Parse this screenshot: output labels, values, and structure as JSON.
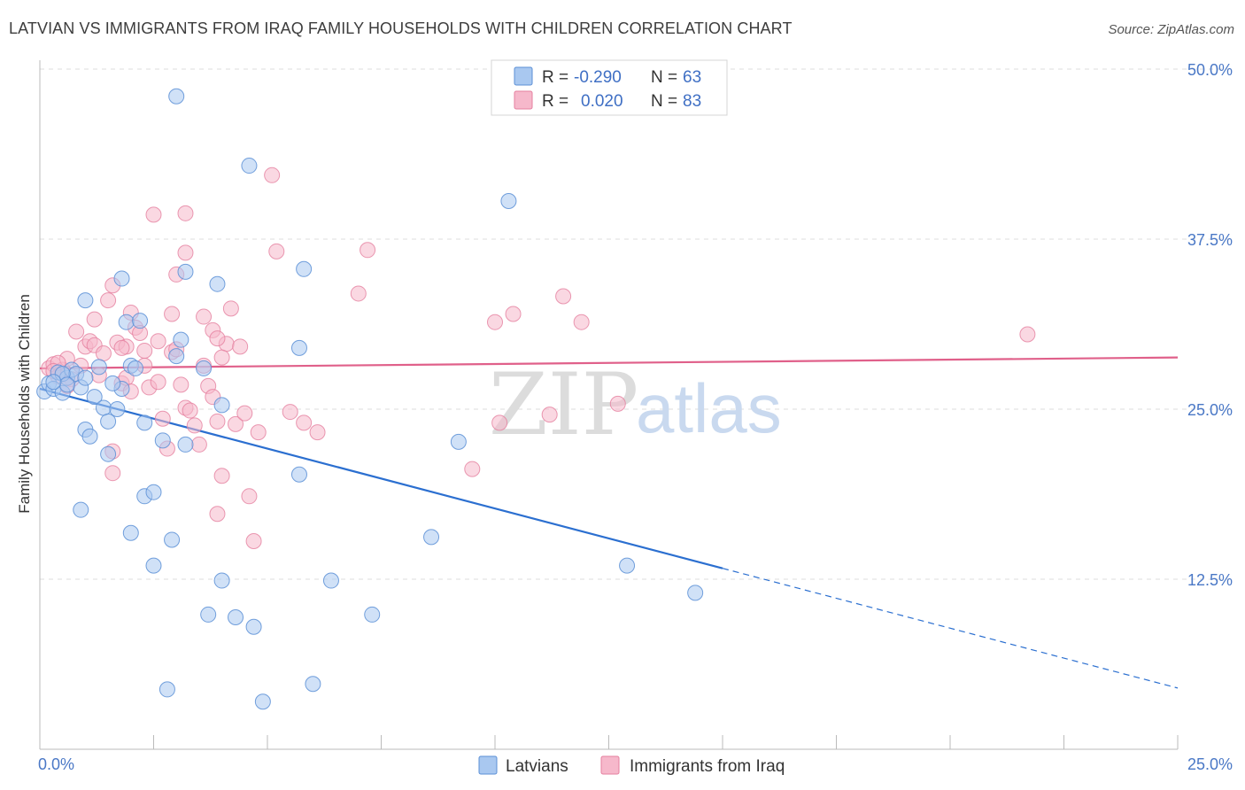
{
  "title": "LATVIAN VS IMMIGRANTS FROM IRAQ FAMILY HOUSEHOLDS WITH CHILDREN CORRELATION CHART",
  "source": "Source: ZipAtlas.com",
  "watermark": {
    "part1": "ZIP",
    "part2": "atlas"
  },
  "colors": {
    "latvians_fill": "#a9c8f0",
    "latvians_stroke": "#5b8fd6",
    "latvians_line": "#2b6fd0",
    "iraq_fill": "#f6b8cb",
    "iraq_stroke": "#e57f9f",
    "iraq_line": "#e0608a",
    "tick_label": "#4a78c6",
    "grid": "#dddddd"
  },
  "legend": {
    "rows": [
      {
        "r_label": "R =",
        "r_value": "-0.290",
        "n_label": "N =",
        "n_value": "63"
      },
      {
        "r_label": "R =",
        "r_value": "0.020",
        "n_label": "N =",
        "n_value": "83"
      }
    ]
  },
  "chart_data": {
    "type": "scatter",
    "xlabel": "",
    "ylabel": "Family Households with Children",
    "xlim": [
      0,
      25
    ],
    "ylim": [
      0,
      50
    ],
    "x_tick_labels": [
      "0.0%",
      "25.0%"
    ],
    "y_tick_labels": [
      "50.0%",
      "37.5%",
      "25.0%",
      "12.5%"
    ],
    "y_ticks": [
      50,
      37.5,
      25,
      12.5
    ],
    "grid": true,
    "legend_position": "top-center",
    "series": [
      {
        "name": "Latvians",
        "stats": {
          "R": -0.29,
          "N": 63
        },
        "trend": {
          "x": [
            0,
            15
          ],
          "y": [
            26.5,
            13.3
          ],
          "extend_to": [
            25,
            4.5
          ]
        },
        "points": [
          [
            0.1,
            26.3
          ],
          [
            0.2,
            26.9
          ],
          [
            0.3,
            26.5
          ],
          [
            0.4,
            27.7
          ],
          [
            0.5,
            26.2
          ],
          [
            0.6,
            27.3
          ],
          [
            0.7,
            27.9
          ],
          [
            0.8,
            27.6
          ],
          [
            0.9,
            26.6
          ],
          [
            1.0,
            27.3
          ],
          [
            0.5,
            27.6
          ],
          [
            0.6,
            26.8
          ],
          [
            3.0,
            48.0
          ],
          [
            4.6,
            42.9
          ],
          [
            10.3,
            40.3
          ],
          [
            1.8,
            34.6
          ],
          [
            3.2,
            35.1
          ],
          [
            3.9,
            34.2
          ],
          [
            5.8,
            35.3
          ],
          [
            1.0,
            33.0
          ],
          [
            1.9,
            31.4
          ],
          [
            2.2,
            31.5
          ],
          [
            3.1,
            30.1
          ],
          [
            5.7,
            29.5
          ],
          [
            3.0,
            28.9
          ],
          [
            2.0,
            28.2
          ],
          [
            2.1,
            28.0
          ],
          [
            3.6,
            28.0
          ],
          [
            1.3,
            28.1
          ],
          [
            1.8,
            26.5
          ],
          [
            1.6,
            26.9
          ],
          [
            1.2,
            25.9
          ],
          [
            1.4,
            25.1
          ],
          [
            1.7,
            25.0
          ],
          [
            4.0,
            25.3
          ],
          [
            2.3,
            24.0
          ],
          [
            1.5,
            24.1
          ],
          [
            1.0,
            23.5
          ],
          [
            1.1,
            23.0
          ],
          [
            2.7,
            22.7
          ],
          [
            3.2,
            22.4
          ],
          [
            1.5,
            21.7
          ],
          [
            9.2,
            22.6
          ],
          [
            5.7,
            20.2
          ],
          [
            2.3,
            18.6
          ],
          [
            2.5,
            18.9
          ],
          [
            0.9,
            17.6
          ],
          [
            2.0,
            15.9
          ],
          [
            2.9,
            15.4
          ],
          [
            8.6,
            15.6
          ],
          [
            2.5,
            13.5
          ],
          [
            4.0,
            12.4
          ],
          [
            6.4,
            12.4
          ],
          [
            12.9,
            13.5
          ],
          [
            14.4,
            11.5
          ],
          [
            3.7,
            9.9
          ],
          [
            4.3,
            9.7
          ],
          [
            4.7,
            9.0
          ],
          [
            7.3,
            9.9
          ],
          [
            2.8,
            4.4
          ],
          [
            6.0,
            4.8
          ],
          [
            4.9,
            3.5
          ],
          [
            0.3,
            27.0
          ]
        ]
      },
      {
        "name": "Immigrants from Iraq",
        "stats": {
          "R": 0.02,
          "N": 83
        },
        "trend": {
          "x": [
            0,
            25
          ],
          "y": [
            28.0,
            28.8
          ]
        },
        "points": [
          [
            0.2,
            28.0
          ],
          [
            0.3,
            28.3
          ],
          [
            0.4,
            27.4
          ],
          [
            0.5,
            27.9
          ],
          [
            0.6,
            28.7
          ],
          [
            0.7,
            27.2
          ],
          [
            0.8,
            30.7
          ],
          [
            0.9,
            28.2
          ],
          [
            1.0,
            29.6
          ],
          [
            1.1,
            30.0
          ],
          [
            1.2,
            29.7
          ],
          [
            1.3,
            27.5
          ],
          [
            1.4,
            29.1
          ],
          [
            1.5,
            33.0
          ],
          [
            1.6,
            34.1
          ],
          [
            1.7,
            29.9
          ],
          [
            1.8,
            26.9
          ],
          [
            1.9,
            29.6
          ],
          [
            2.0,
            32.1
          ],
          [
            2.1,
            31.0
          ],
          [
            2.2,
            30.6
          ],
          [
            2.3,
            28.2
          ],
          [
            2.4,
            26.6
          ],
          [
            2.5,
            39.3
          ],
          [
            2.6,
            27.0
          ],
          [
            2.7,
            24.3
          ],
          [
            2.8,
            22.1
          ],
          [
            2.9,
            29.2
          ],
          [
            3.0,
            29.4
          ],
          [
            3.1,
            26.8
          ],
          [
            3.2,
            25.1
          ],
          [
            3.3,
            24.9
          ],
          [
            3.4,
            23.8
          ],
          [
            3.5,
            22.4
          ],
          [
            3.6,
            28.2
          ],
          [
            3.7,
            26.7
          ],
          [
            3.8,
            25.9
          ],
          [
            3.9,
            24.1
          ],
          [
            4.0,
            20.1
          ],
          [
            4.1,
            29.8
          ],
          [
            4.2,
            32.4
          ],
          [
            4.3,
            23.9
          ],
          [
            4.4,
            29.6
          ],
          [
            4.5,
            24.7
          ],
          [
            4.6,
            18.6
          ],
          [
            4.7,
            15.3
          ],
          [
            4.8,
            23.3
          ],
          [
            5.1,
            42.2
          ],
          [
            5.2,
            36.6
          ],
          [
            5.5,
            24.8
          ],
          [
            5.8,
            24.0
          ],
          [
            6.1,
            23.3
          ],
          [
            7.0,
            33.5
          ],
          [
            7.2,
            36.7
          ],
          [
            10.4,
            32.0
          ],
          [
            10.0,
            31.4
          ],
          [
            11.5,
            33.3
          ],
          [
            11.9,
            31.4
          ],
          [
            12.7,
            25.4
          ],
          [
            10.1,
            24.0
          ],
          [
            11.2,
            24.6
          ],
          [
            9.5,
            20.6
          ],
          [
            3.2,
            39.4
          ],
          [
            3.2,
            36.5
          ],
          [
            3.0,
            34.9
          ],
          [
            2.9,
            32.0
          ],
          [
            3.6,
            31.8
          ],
          [
            3.8,
            30.8
          ],
          [
            3.9,
            30.2
          ],
          [
            2.3,
            29.3
          ],
          [
            1.8,
            29.5
          ],
          [
            1.6,
            21.9
          ],
          [
            1.6,
            20.3
          ],
          [
            3.9,
            17.3
          ],
          [
            21.7,
            30.5
          ],
          [
            1.9,
            27.3
          ],
          [
            2.0,
            26.3
          ],
          [
            0.6,
            26.7
          ],
          [
            0.4,
            28.4
          ],
          [
            0.3,
            27.8
          ],
          [
            1.2,
            31.6
          ],
          [
            2.6,
            30.0
          ],
          [
            4.0,
            28.8
          ]
        ]
      }
    ]
  },
  "bottom_legend": [
    {
      "label": "Latvians"
    },
    {
      "label": "Immigrants from Iraq"
    }
  ]
}
